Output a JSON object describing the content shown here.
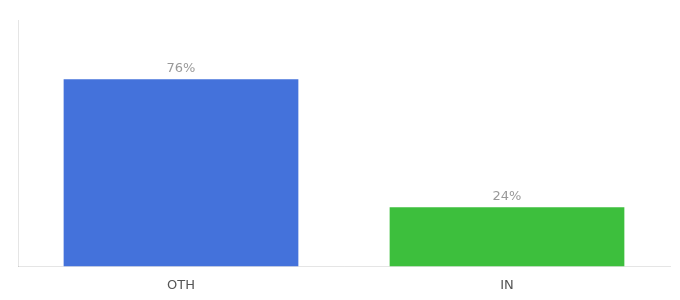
{
  "chart_data": {
    "type": "bar",
    "categories": [
      "OTH",
      "IN"
    ],
    "values": [
      76,
      24
    ],
    "value_labels": [
      "76%",
      "24%"
    ],
    "colors": [
      "#4472db",
      "#3dbf3d"
    ],
    "ylim": [
      0,
      100
    ],
    "yticks": [],
    "data_labels": true,
    "tick_labels": "x",
    "grid": false
  }
}
